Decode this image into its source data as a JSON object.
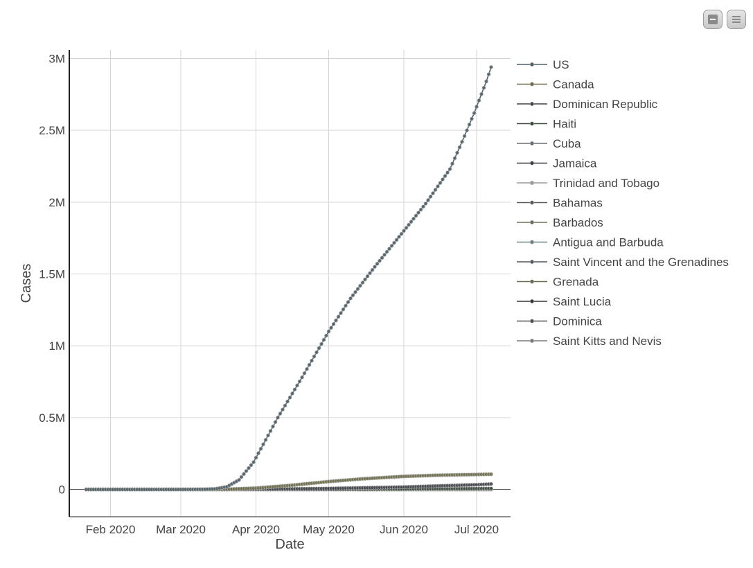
{
  "toolbar": {
    "buttons": [
      {
        "icon": "minus-icon"
      },
      {
        "icon": "menu-icon"
      }
    ]
  },
  "chart_data": {
    "type": "line",
    "markers": true,
    "xlabel": "Date",
    "ylabel": "Cases",
    "x_axis_type": "date",
    "x_range": [
      "2020-01-15",
      "2020-07-15"
    ],
    "x_ticks": [
      {
        "date": "2020-02-01",
        "label": "Feb 2020"
      },
      {
        "date": "2020-03-01",
        "label": "Mar 2020"
      },
      {
        "date": "2020-04-01",
        "label": "Apr 2020"
      },
      {
        "date": "2020-05-01",
        "label": "May 2020"
      },
      {
        "date": "2020-06-01",
        "label": "Jun 2020"
      },
      {
        "date": "2020-07-01",
        "label": "Jul 2020"
      }
    ],
    "ylim": [
      -190000,
      3060000
    ],
    "y_ticks": [
      {
        "value": 0,
        "label": "0"
      },
      {
        "value": 500000,
        "label": "0.5M"
      },
      {
        "value": 1000000,
        "label": "1M"
      },
      {
        "value": 1500000,
        "label": "1.5M"
      },
      {
        "value": 2000000,
        "label": "2M"
      },
      {
        "value": 2500000,
        "label": "2.5M"
      },
      {
        "value": 3000000,
        "label": "3M"
      }
    ],
    "grid": true,
    "legend_position": "right",
    "series": [
      {
        "name": "US",
        "color": "#4f5f66",
        "points": [
          [
            "2020-01-22",
            1
          ],
          [
            "2020-03-01",
            75
          ],
          [
            "2020-03-10",
            1000
          ],
          [
            "2020-03-15",
            3500
          ],
          [
            "2020-03-20",
            19000
          ],
          [
            "2020-03-25",
            66000
          ],
          [
            "2020-03-31",
            190000
          ],
          [
            "2020-04-10",
            500000
          ],
          [
            "2020-04-20",
            780000
          ],
          [
            "2020-05-01",
            1100000
          ],
          [
            "2020-05-10",
            1330000
          ],
          [
            "2020-05-20",
            1550000
          ],
          [
            "2020-06-01",
            1800000
          ],
          [
            "2020-06-10",
            1990000
          ],
          [
            "2020-06-20",
            2230000
          ],
          [
            "2020-06-25",
            2420000
          ],
          [
            "2020-06-30",
            2620000
          ],
          [
            "2020-07-05",
            2840000
          ],
          [
            "2020-07-07",
            2940000
          ]
        ]
      },
      {
        "name": "Canada",
        "color": "#6b6b4a",
        "points": [
          [
            "2020-01-26",
            1
          ],
          [
            "2020-03-10",
            90
          ],
          [
            "2020-03-20",
            1000
          ],
          [
            "2020-04-01",
            9500
          ],
          [
            "2020-04-15",
            28000
          ],
          [
            "2020-05-01",
            55000
          ],
          [
            "2020-05-15",
            74000
          ],
          [
            "2020-06-01",
            91000
          ],
          [
            "2020-06-15",
            99000
          ],
          [
            "2020-07-01",
            104000
          ],
          [
            "2020-07-07",
            106000
          ]
        ]
      },
      {
        "name": "Dominican Republic",
        "color": "#3f4248",
        "points": [
          [
            "2020-03-01",
            1
          ],
          [
            "2020-04-01",
            1300
          ],
          [
            "2020-05-01",
            7000
          ],
          [
            "2020-06-01",
            17000
          ],
          [
            "2020-07-01",
            33000
          ],
          [
            "2020-07-07",
            38000
          ]
        ]
      },
      {
        "name": "Haiti",
        "color": "#3d4a3d",
        "points": [
          [
            "2020-03-19",
            2
          ],
          [
            "2020-05-01",
            100
          ],
          [
            "2020-06-01",
            2600
          ],
          [
            "2020-07-01",
            6000
          ],
          [
            "2020-07-07",
            6700
          ]
        ]
      },
      {
        "name": "Cuba",
        "color": "#686e72",
        "points": [
          [
            "2020-03-11",
            3
          ],
          [
            "2020-04-01",
            212
          ],
          [
            "2020-05-01",
            1500
          ],
          [
            "2020-06-01",
            2100
          ],
          [
            "2020-07-07",
            2400
          ]
        ]
      },
      {
        "name": "Jamaica",
        "color": "#3a3a40",
        "points": [
          [
            "2020-03-11",
            1
          ],
          [
            "2020-04-01",
            44
          ],
          [
            "2020-05-01",
            470
          ],
          [
            "2020-06-01",
            590
          ],
          [
            "2020-07-07",
            730
          ]
        ]
      },
      {
        "name": "Trinidad and Tobago",
        "color": "#9a9a9a",
        "points": [
          [
            "2020-03-13",
            2
          ],
          [
            "2020-04-15",
            114
          ],
          [
            "2020-07-07",
            133
          ]
        ]
      },
      {
        "name": "Bahamas",
        "color": "#5a5a5e",
        "points": [
          [
            "2020-03-16",
            1
          ],
          [
            "2020-05-01",
            83
          ],
          [
            "2020-07-07",
            104
          ]
        ]
      },
      {
        "name": "Barbados",
        "color": "#6c7058",
        "points": [
          [
            "2020-03-17",
            2
          ],
          [
            "2020-05-01",
            80
          ],
          [
            "2020-07-07",
            98
          ]
        ]
      },
      {
        "name": "Antigua and Barbuda",
        "color": "#6e8080",
        "points": [
          [
            "2020-03-13",
            1
          ],
          [
            "2020-05-01",
            24
          ],
          [
            "2020-07-07",
            70
          ]
        ]
      },
      {
        "name": "Saint Vincent and the Grenadines",
        "color": "#4c565c",
        "points": [
          [
            "2020-03-11",
            1
          ],
          [
            "2020-05-01",
            17
          ],
          [
            "2020-07-07",
            29
          ]
        ]
      },
      {
        "name": "Grenada",
        "color": "#6a6c50",
        "points": [
          [
            "2020-03-22",
            1
          ],
          [
            "2020-05-01",
            21
          ],
          [
            "2020-07-07",
            23
          ]
        ]
      },
      {
        "name": "Saint Lucia",
        "color": "#33363c",
        "points": [
          [
            "2020-03-13",
            1
          ],
          [
            "2020-05-01",
            17
          ],
          [
            "2020-07-07",
            22
          ]
        ]
      },
      {
        "name": "Dominica",
        "color": "#505054",
        "points": [
          [
            "2020-03-22",
            1
          ],
          [
            "2020-05-01",
            16
          ],
          [
            "2020-07-07",
            18
          ]
        ]
      },
      {
        "name": "Saint Kitts and Nevis",
        "color": "#78787c",
        "points": [
          [
            "2020-03-25",
            2
          ],
          [
            "2020-05-01",
            15
          ],
          [
            "2020-07-07",
            15
          ]
        ]
      }
    ]
  }
}
